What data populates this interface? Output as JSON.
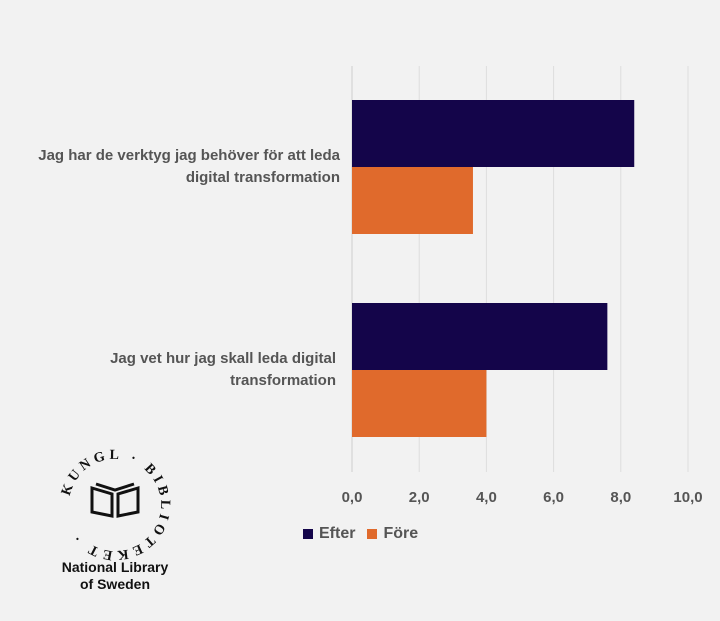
{
  "chart_data": {
    "type": "bar",
    "orientation": "horizontal",
    "categories": [
      "Jag har de verktyg jag behöver för att leda digital transformation",
      "Jag vet hur jag skall leda digital transformation"
    ],
    "series": [
      {
        "name": "Efter",
        "values": [
          8.4,
          7.6
        ],
        "color": "#14054a"
      },
      {
        "name": "Före",
        "values": [
          3.6,
          4.0
        ],
        "color": "#e06a2c"
      }
    ],
    "xlim": [
      0,
      10
    ],
    "xticks": [
      "0,0",
      "2,0",
      "4,0",
      "6,0",
      "8,0",
      "10,0"
    ],
    "grid": "vertical",
    "legend_position": "bottom"
  },
  "legend": {
    "efter_label": "Efter",
    "fore_label": "Före"
  },
  "logo": {
    "ring_text": "KUNGL · BIBLIOTEKET",
    "line1": "National Library",
    "line2": "of Sweden"
  }
}
